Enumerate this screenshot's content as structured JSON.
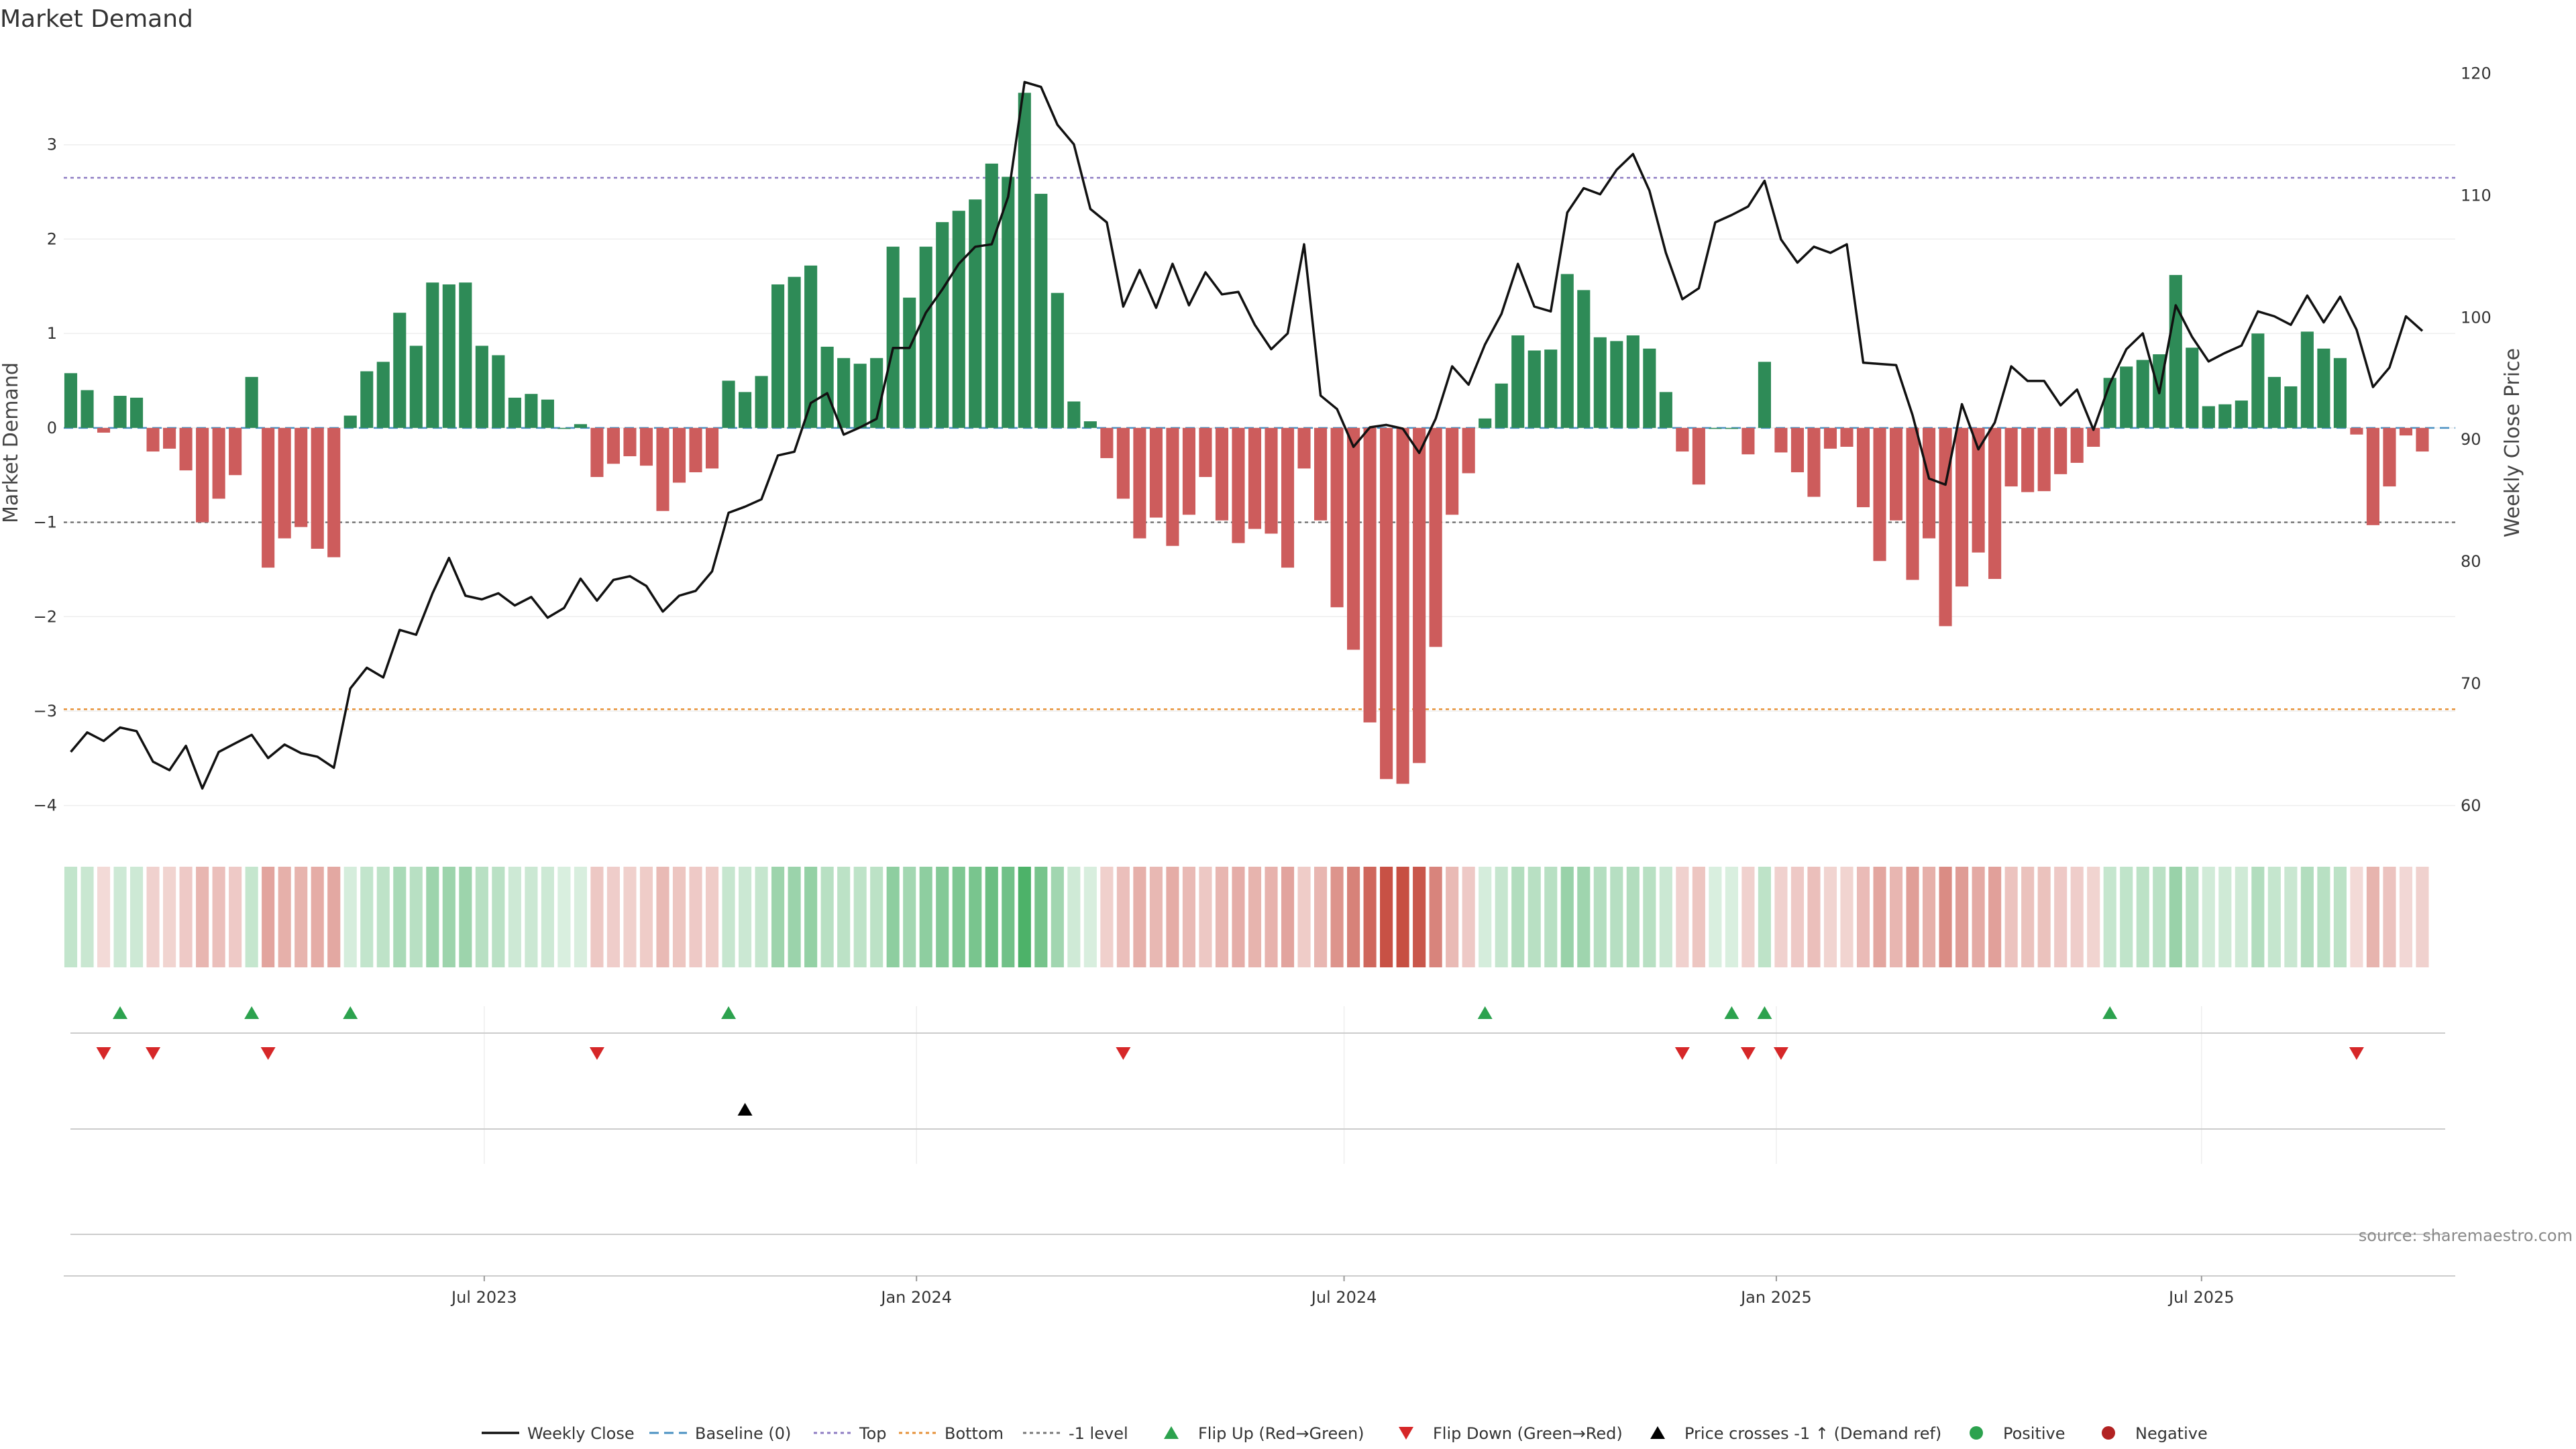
{
  "chart_data": {
    "type": "bar",
    "title": "Market Demand",
    "ylabel": "Market Demand",
    "y2label": "Weekly Close Price",
    "ylim": [
      -4.35,
      4.0
    ],
    "y2lim": [
      57.3,
      121.9
    ],
    "yticks": [
      3,
      2,
      1,
      0,
      -1,
      -2,
      -3,
      -4
    ],
    "yticks_text": [
      "3",
      "2",
      "1",
      "0",
      "−1",
      "−2",
      "−3",
      "−4"
    ],
    "y2ticks": [
      120,
      110,
      100,
      90,
      80,
      70,
      60
    ],
    "y2ticks_text": [
      "120",
      "110",
      "100",
      "90",
      "80",
      "70",
      "60"
    ],
    "x_start": "2023-01-06",
    "x_step_days": 7,
    "xlim": [
      "2023-01-03",
      "2025-10-17"
    ],
    "xticks": [
      {
        "date": "2023-07-01",
        "label": "Jul 2023"
      },
      {
        "date": "2024-01-01",
        "label": "Jan 2024"
      },
      {
        "date": "2024-07-01",
        "label": "Jul 2024"
      },
      {
        "date": "2025-01-01",
        "label": "Jan 2025"
      },
      {
        "date": "2025-07-01",
        "label": "Jul 2025"
      }
    ],
    "reference_lines": [
      {
        "name": "Top",
        "value": 2.65,
        "color": "#8e7cc3"
      },
      {
        "name": "Bottom",
        "value": -2.98,
        "color": "#e69138"
      },
      {
        "name": "-1 level",
        "value": -1.0,
        "color": "#777777"
      }
    ],
    "demand": [
      0.58,
      0.4,
      -0.05,
      0.34,
      0.32,
      -0.25,
      -0.22,
      -0.45,
      -1.0,
      -0.75,
      -0.5,
      0.54,
      -1.48,
      -1.17,
      -1.05,
      -1.28,
      -1.37,
      0.13,
      0.6,
      0.7,
      1.22,
      0.87,
      1.54,
      1.52,
      1.54,
      0.87,
      0.77,
      0.32,
      0.36,
      0.3,
      0.0,
      0.04,
      -0.52,
      -0.38,
      -0.3,
      -0.4,
      -0.88,
      -0.58,
      -0.47,
      -0.43,
      0.5,
      0.38,
      0.55,
      1.52,
      1.6,
      1.72,
      0.86,
      0.74,
      0.68,
      0.74,
      1.92,
      1.38,
      1.92,
      2.18,
      2.3,
      2.42,
      2.8,
      2.66,
      3.55,
      2.48,
      1.43,
      0.28,
      0.07,
      -0.32,
      -0.75,
      -1.17,
      -0.95,
      -1.25,
      -0.92,
      -0.52,
      -0.98,
      -1.22,
      -1.07,
      -1.12,
      -1.48,
      -0.43,
      -0.98,
      -1.9,
      -2.35,
      -3.12,
      -3.72,
      -3.77,
      -3.55,
      -2.32,
      -0.92,
      -0.48,
      0.1,
      0.47,
      0.98,
      0.82,
      0.83,
      1.63,
      1.46,
      0.96,
      0.92,
      0.98,
      0.84,
      0.38,
      -0.25,
      -0.6,
      0.0,
      0.0,
      -0.28,
      0.7,
      -0.26,
      -0.47,
      -0.73,
      -0.22,
      -0.2,
      -0.84,
      -1.41,
      -0.98,
      -1.61,
      -1.17,
      -2.1,
      -1.68,
      -1.32,
      -1.6,
      -0.62,
      -0.68,
      -0.67,
      -0.49,
      -0.37,
      -0.2,
      0.53,
      0.65,
      0.72,
      0.78,
      1.62,
      0.85,
      0.23,
      0.25,
      0.29,
      1.0,
      0.54,
      0.44,
      1.02,
      0.84,
      0.74,
      -0.07,
      -1.03,
      -0.62,
      -0.08,
      -0.25
    ],
    "series": [
      {
        "name": "Weekly Close",
        "color": "#111111",
        "values": [
          64.4,
          66.0,
          65.3,
          66.4,
          66.1,
          63.6,
          62.9,
          64.9,
          61.4,
          64.4,
          65.1,
          65.8,
          63.9,
          65.0,
          64.3,
          64.0,
          63.1,
          69.6,
          71.3,
          70.5,
          74.4,
          74.0,
          77.4,
          80.3,
          77.2,
          76.9,
          77.4,
          76.4,
          77.1,
          75.4,
          76.2,
          78.6,
          76.8,
          78.5,
          78.8,
          78.0,
          75.9,
          77.2,
          77.6,
          79.2,
          84.0,
          84.5,
          85.1,
          88.7,
          89.0,
          93.0,
          93.8,
          90.4,
          91.0,
          91.7,
          97.5,
          97.5,
          100.4,
          102.3,
          104.4,
          105.8,
          106.0,
          109.9,
          119.3,
          118.9,
          115.8,
          114.2,
          108.9,
          107.8,
          100.9,
          103.9,
          100.8,
          104.4,
          101.0,
          103.7,
          101.9,
          102.1,
          99.4,
          97.4,
          98.7,
          106.0,
          93.6,
          92.5,
          89.4,
          91.0,
          91.2,
          90.9,
          88.9,
          91.7,
          96.0,
          94.5,
          97.8,
          100.3,
          104.4,
          100.9,
          100.5,
          108.6,
          110.6,
          110.1,
          112.1,
          113.4,
          110.4,
          105.3,
          101.5,
          102.4,
          107.8,
          108.4,
          109.1,
          111.2,
          106.4,
          104.5,
          105.8,
          105.3,
          106.0,
          96.3,
          96.2,
          96.1,
          92.0,
          86.8,
          86.3,
          92.9,
          89.2,
          91.4,
          96.0,
          94.8,
          94.8,
          92.8,
          94.1,
          90.8,
          94.6,
          97.4,
          98.7,
          93.8,
          101.0,
          98.4,
          96.4,
          97.1,
          97.7,
          100.5,
          100.1,
          99.4,
          101.8,
          99.6,
          101.7,
          99.0,
          94.3,
          95.9,
          100.1,
          98.9
        ]
      },
      {
        "name": "Baseline (0)",
        "color": "#4a90c2"
      }
    ],
    "markers": {
      "flip_up": [
        3,
        11,
        17,
        40,
        86,
        101,
        103,
        124
      ],
      "flip_down": [
        2,
        5,
        12,
        32,
        64,
        98,
        102,
        104,
        139
      ],
      "price_cross": [
        41
      ]
    },
    "legend": {
      "placement": "bottom-center",
      "items": [
        {
          "label": "Weekly Close",
          "symbol": "solid-line",
          "color": "#111111"
        },
        {
          "label": "Baseline (0)",
          "symbol": "dash-line",
          "color": "#4a90c2"
        },
        {
          "label": "Top",
          "symbol": "dot-line",
          "color": "#8e7cc3"
        },
        {
          "label": "Bottom",
          "symbol": "dot-line",
          "color": "#e69138"
        },
        {
          "label": "-1 level",
          "symbol": "dot-line",
          "color": "#777777"
        },
        {
          "label": "Flip Up (Red→Green)",
          "symbol": "triangle-up",
          "color": "#2ca24e"
        },
        {
          "label": "Flip Down (Green→Red)",
          "symbol": "triangle-down",
          "color": "#d62728"
        },
        {
          "label": "Price crosses -1 ↑ (Demand ref)",
          "symbol": "triangle-up",
          "color": "#000000"
        },
        {
          "label": "Positive",
          "symbol": "circle",
          "color": "#2ca24e"
        },
        {
          "label": "Negative",
          "symbol": "circle",
          "color": "#b22222"
        }
      ]
    },
    "colors": {
      "positive_bar": "#2e8b57",
      "negative_bar": "#cd5c5c",
      "heat_positive": "#2ea44f",
      "heat_negative": "#c0392b"
    },
    "grid": true,
    "source": "source: sharemaestro.com"
  }
}
